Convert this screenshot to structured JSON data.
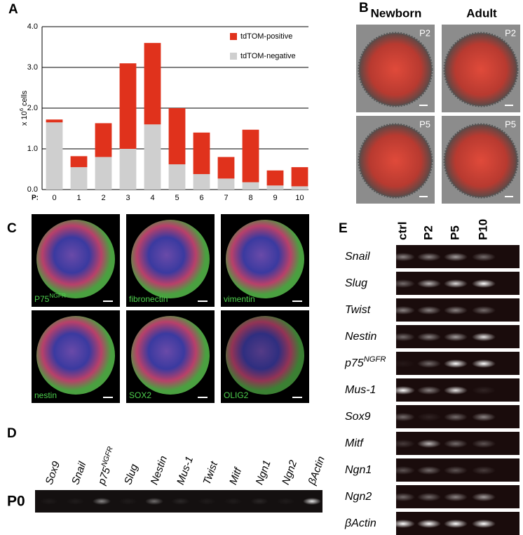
{
  "panel_labels": [
    "A",
    "B",
    "C",
    "D",
    "E"
  ],
  "chart_data": {
    "type": "bar",
    "stacked": true,
    "categories": [
      "0",
      "1",
      "2",
      "3",
      "4",
      "5",
      "6",
      "7",
      "8",
      "9",
      "10"
    ],
    "xlabel": "P:",
    "ylabel": {
      "base": "x 10",
      "sup": "6",
      "rest": " cells"
    },
    "ylim": [
      0,
      4
    ],
    "yticks": [
      {
        "value": 0,
        "label": "0.0"
      },
      {
        "value": 1,
        "label": "1.0"
      },
      {
        "value": 2,
        "label": "2.0"
      },
      {
        "value": 3,
        "label": "3.0"
      },
      {
        "value": 4,
        "label": "4.0"
      }
    ],
    "grid": true,
    "legend": "upper right",
    "series": [
      {
        "name": "tdTOM-positive",
        "color": "#e0321c",
        "values": [
          0.07,
          0.27,
          0.83,
          2.1,
          2.0,
          1.38,
          1.02,
          0.53,
          1.29,
          0.37,
          0.47
        ]
      },
      {
        "name": "tdTOM-negative",
        "color": "#cfcfcf",
        "values": [
          1.65,
          0.55,
          0.8,
          1.0,
          1.6,
          0.62,
          0.38,
          0.27,
          0.18,
          0.1,
          0.08
        ]
      }
    ]
  },
  "panel_b": {
    "columns": [
      "Newborn",
      "Adult"
    ],
    "rows": [
      "P2",
      "P5"
    ]
  },
  "panel_c": {
    "stains": [
      {
        "text": "P75",
        "sup": "NGFR"
      },
      {
        "text": "fibronectin"
      },
      {
        "text": "vimentin"
      },
      {
        "text": "nestin"
      },
      {
        "text": "SOX2"
      },
      {
        "text": "OLIG2"
      }
    ]
  },
  "panel_d": {
    "row_label": "P0",
    "genes": [
      {
        "text": "Sox9"
      },
      {
        "text": "Snail"
      },
      {
        "text": "p75",
        "sup": "NGFR"
      },
      {
        "text": "Slug"
      },
      {
        "text": "Nestin"
      },
      {
        "text": "Mus-1"
      },
      {
        "text": "Twist"
      },
      {
        "text": "Mitf"
      },
      {
        "text": "Ngn1"
      },
      {
        "text": "Ngn2"
      },
      {
        "text": "βActin"
      }
    ]
  },
  "panel_e": {
    "columns": [
      "ctrl",
      "P2",
      "P5",
      "P10"
    ],
    "genes": [
      {
        "text": "Snail"
      },
      {
        "text": "Slug"
      },
      {
        "text": "Twist"
      },
      {
        "text": "Nestin"
      },
      {
        "text": "p75",
        "sup": "NGFR"
      },
      {
        "text": "Mus-1"
      },
      {
        "text": "Sox9"
      },
      {
        "text": "Mitf"
      },
      {
        "text": "Ngn1"
      },
      {
        "text": "Ngn2"
      },
      {
        "text": "βActin"
      }
    ]
  }
}
